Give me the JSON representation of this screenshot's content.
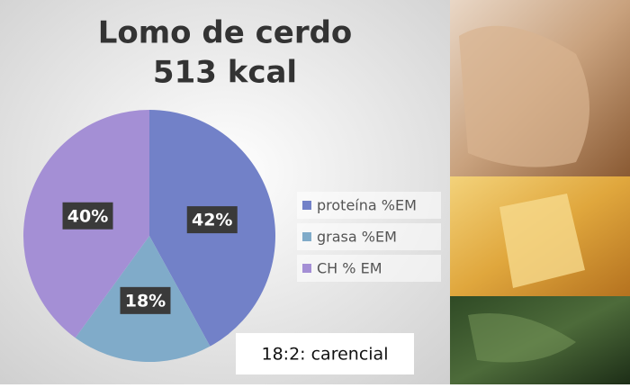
{
  "chart_data": {
    "type": "pie",
    "title": "Lomo de cerdo",
    "subtitle": "513 kcal",
    "categories": [
      "proteína %EM",
      "grasa %EM",
      "CH % EM"
    ],
    "values": [
      42,
      18,
      40
    ],
    "value_labels": [
      "42%",
      "18%",
      "40%"
    ],
    "colors": [
      "#7281c8",
      "#80abc9",
      "#a48fd5"
    ],
    "legend": "right",
    "annotation": "18:2:  carencial"
  }
}
